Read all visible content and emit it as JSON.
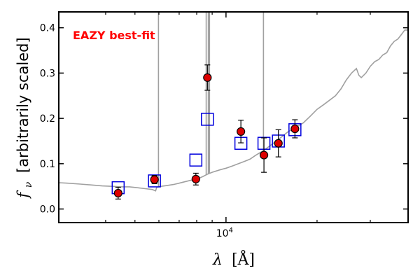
{
  "chart_data": {
    "type": "scatter",
    "x_scale": "log",
    "xlim": [
      2800,
      40000
    ],
    "ylim": [
      -0.03,
      0.435
    ],
    "xlabel_base": "λ",
    "xlabel_unit": "[Å]",
    "ylabel_symbol": "f",
    "ylabel_subscript": "ν",
    "ylabel_text": "[arbitrarily scaled]",
    "x_ticks_major": [
      {
        "value": 10000,
        "label_base": "10",
        "label_exp": "4"
      }
    ],
    "x_ticks_minor": [
      4000,
      5000,
      6000,
      7000,
      8000,
      9000,
      20000,
      30000
    ],
    "y_ticks": [
      {
        "value": 0.0,
        "label": "0.0"
      },
      {
        "value": 0.1,
        "label": "0.1"
      },
      {
        "value": 0.2,
        "label": "0.2"
      },
      {
        "value": 0.3,
        "label": "0.3"
      },
      {
        "value": 0.4,
        "label": "0.4"
      }
    ],
    "annotation": "EAZY best-fit",
    "annotation_color": "#ff0000",
    "colors": {
      "template": "#a0a0a0",
      "observed_fill": "#dd0000",
      "observed_edge": "#000000",
      "model_edge": "#0000dd",
      "errorbar": "#000000"
    },
    "series": [
      {
        "kind": "template_line",
        "x": [
          2800,
          3000,
          3300,
          3600,
          3900,
          4200,
          4500,
          4800,
          5100,
          5400,
          5700,
          5850,
          5900,
          6100,
          6400,
          6700,
          7000,
          7300,
          7600,
          7900,
          8150,
          8400,
          8700,
          9000,
          9300,
          9600,
          10000,
          10500,
          11000,
          11500,
          12000,
          12500,
          13000,
          13500,
          14000,
          15000,
          16000,
          17000,
          18000,
          19000,
          20000,
          21000,
          22000,
          23000,
          24000,
          25000,
          26000,
          27000,
          27500,
          28000,
          29000,
          30000,
          31000,
          32000,
          33000,
          34000,
          35000,
          36000,
          37000,
          38000,
          39000,
          40000
        ],
        "y": [
          0.058,
          0.057,
          0.055,
          0.053,
          0.051,
          0.05,
          0.049,
          0.049,
          0.047,
          0.045,
          0.043,
          0.04,
          0.048,
          0.05,
          0.052,
          0.054,
          0.057,
          0.06,
          0.063,
          0.065,
          0.068,
          0.072,
          0.077,
          0.081,
          0.084,
          0.087,
          0.09,
          0.095,
          0.1,
          0.105,
          0.11,
          0.118,
          0.125,
          0.132,
          0.14,
          0.155,
          0.17,
          0.18,
          0.19,
          0.205,
          0.22,
          0.23,
          0.24,
          0.25,
          0.265,
          0.285,
          0.3,
          0.31,
          0.295,
          0.29,
          0.3,
          0.315,
          0.325,
          0.33,
          0.34,
          0.345,
          0.36,
          0.37,
          0.375,
          0.385,
          0.395,
          0.395
        ]
      },
      {
        "kind": "emission_lines",
        "lines": [
          {
            "x": 5980,
            "y_top": 0.435
          },
          {
            "x": 8600,
            "y_top": 0.435
          },
          {
            "x": 8740,
            "y_top": 0.435
          },
          {
            "x": 8820,
            "y_top": 0.435
          },
          {
            "x": 13300,
            "y_top": 0.435
          }
        ]
      },
      {
        "kind": "model_squares",
        "x": [
          4400,
          5800,
          7950,
          8680,
          11200,
          13350,
          14900,
          16900
        ],
        "y": [
          0.047,
          0.062,
          0.108,
          0.198,
          0.145,
          0.145,
          0.15,
          0.175
        ]
      },
      {
        "kind": "observed_points",
        "x": [
          4400,
          5800,
          7950,
          8680,
          11200,
          13350,
          14900,
          16900
        ],
        "y": [
          0.035,
          0.065,
          0.066,
          0.29,
          0.171,
          0.119,
          0.145,
          0.177
        ],
        "err": [
          0.013,
          0.009,
          0.013,
          0.028,
          0.025,
          0.038,
          0.03,
          0.02
        ]
      }
    ]
  }
}
